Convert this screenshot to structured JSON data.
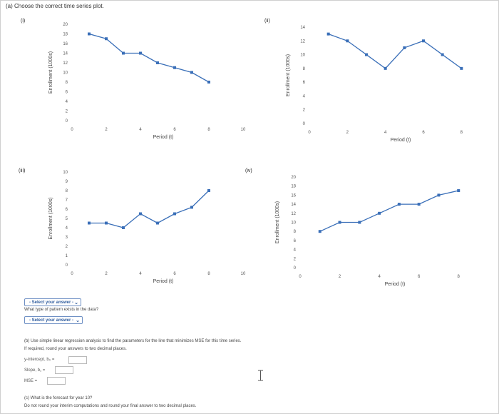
{
  "question_a": "(a) Choose the correct time series plot.",
  "charts": [
    {
      "id": "i",
      "label": "(i)",
      "type": "line",
      "x": [
        1,
        2,
        3,
        4,
        5,
        6,
        7,
        8
      ],
      "y": [
        18,
        17,
        14,
        14,
        12,
        11,
        10,
        8
      ],
      "xticks": [
        "0",
        "2",
        "4",
        "6",
        "8",
        "10"
      ],
      "yticks": [
        "0",
        "2",
        "4",
        "6",
        "8",
        "10",
        "12",
        "14",
        "16",
        "18",
        "20"
      ],
      "xlabel": "Period (t)",
      "ylabel": "Enrollment (1000s)",
      "xlim": [
        0,
        10
      ],
      "ylim": [
        0,
        20
      ]
    },
    {
      "id": "ii",
      "label": "(ii)",
      "type": "line",
      "x": [
        1,
        2,
        3,
        4,
        5,
        6,
        7,
        8
      ],
      "y": [
        13,
        12,
        10,
        8,
        11,
        12,
        10,
        8
      ],
      "xticks": [
        "0",
        "2",
        "4",
        "6",
        "8"
      ],
      "yticks": [
        "0",
        "2",
        "4",
        "6",
        "8",
        "10",
        "12",
        "14"
      ],
      "xlabel": "Period (t)",
      "ylabel": "Enrollment (1000s)",
      "xlim": [
        0,
        9
      ],
      "ylim": [
        0,
        14
      ]
    },
    {
      "id": "iii",
      "label": "(iii)",
      "type": "line",
      "x": [
        1,
        2,
        3,
        4,
        5,
        6,
        7,
        8
      ],
      "y": [
        4.5,
        4.5,
        4,
        5.5,
        4.5,
        5.5,
        6.2,
        8
      ],
      "xticks": [
        "0",
        "2",
        "4",
        "6",
        "8",
        "10"
      ],
      "yticks": [
        "0",
        "1",
        "2",
        "3",
        "4",
        "5",
        "6",
        "7",
        "8",
        "9",
        "10"
      ],
      "xlabel": "Period (t)",
      "ylabel": "Enrollment (1000s)",
      "xlim": [
        0,
        10
      ],
      "ylim": [
        0,
        10
      ]
    },
    {
      "id": "iv",
      "label": "(iv)",
      "type": "line",
      "x": [
        1,
        2,
        3,
        4,
        5,
        6,
        7,
        8
      ],
      "y": [
        8,
        10,
        10,
        12,
        14,
        14,
        16,
        17
      ],
      "xticks": [
        "0",
        "2",
        "4",
        "6",
        "8"
      ],
      "yticks": [
        "0",
        "2",
        "4",
        "6",
        "8",
        "10",
        "12",
        "14",
        "16",
        "18",
        "20"
      ],
      "xlabel": "Period (t)",
      "ylabel": "Enrollment (1000s)",
      "xlim": [
        0,
        9
      ],
      "ylim": [
        0,
        20
      ]
    }
  ],
  "select_1": "- Select your answer -",
  "pattern_question": "What type of pattern exists in the data?",
  "select_2": "- Select your answer -",
  "question_b": "(b) Use simple linear regression analysis to find the parameters for the line that minimizes MSE for this time series.",
  "question_b_note": "If required, round your answers to two decimal places.",
  "intercept_label": "y-intercept, b₀ =",
  "slope_label": "Slope, b₁ =",
  "mse_label": "MSE =",
  "question_c": "(c) What is the forecast for year 10?",
  "question_c_note": "Do not round your interim computations and round your final answer to two decimal places.",
  "colors": {
    "series": "#3a6fb8",
    "select_border": "#6d8fc4",
    "select_text": "#2f5c9e"
  }
}
